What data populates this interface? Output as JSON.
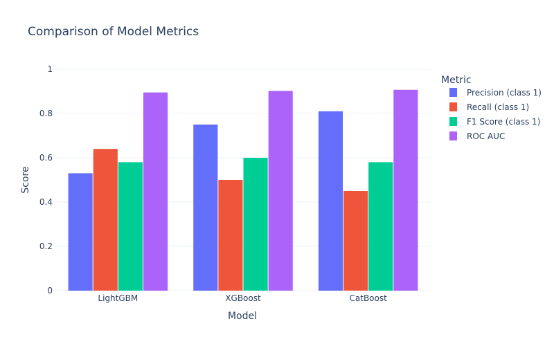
{
  "chart_data": {
    "type": "bar",
    "title": "Comparison of Model Metrics",
    "xlabel": "Model",
    "ylabel": "Score",
    "categories": [
      "LightGBM",
      "XGBoost",
      "CatBoost"
    ],
    "ylim": [
      0,
      1
    ],
    "yticks": [
      "0",
      "0.2",
      "0.4",
      "0.6",
      "0.8",
      "1"
    ],
    "ytick_values": [
      0,
      0.2,
      0.4,
      0.6,
      0.8,
      1
    ],
    "grid": true,
    "legend": {
      "title": "Metric",
      "placement": "right"
    },
    "series": [
      {
        "name": "Precision (class 1)",
        "color": "#636efa",
        "values": [
          0.53,
          0.75,
          0.81
        ]
      },
      {
        "name": "Recall (class 1)",
        "color": "#ef553b",
        "values": [
          0.64,
          0.5,
          0.45
        ]
      },
      {
        "name": "F1 Score (class 1)",
        "color": "#00cc96",
        "values": [
          0.58,
          0.6,
          0.58
        ]
      },
      {
        "name": "ROC AUC",
        "color": "#ab63fa",
        "values": [
          0.895,
          0.902,
          0.907
        ]
      }
    ]
  }
}
